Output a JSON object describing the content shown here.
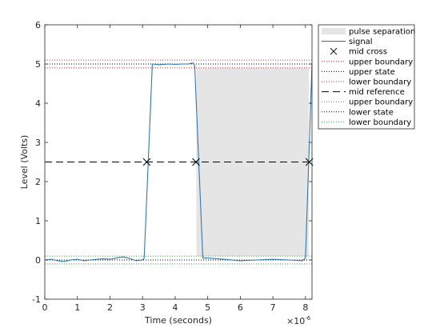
{
  "chart_data": {
    "type": "line",
    "xlabel": "Time (seconds)",
    "ylabel": "Level (Volts)",
    "x_exponent_label": "×10",
    "x_exponent_power": "-6",
    "xlim": [
      0,
      8.2
    ],
    "ylim": [
      -1,
      6
    ],
    "xticks": [
      "0",
      "1",
      "2",
      "3",
      "4",
      "5",
      "6",
      "7",
      "8"
    ],
    "yticks": [
      "-1",
      "0",
      "1",
      "2",
      "3",
      "4",
      "5",
      "6"
    ],
    "grid": false,
    "legend_position": "top-right-outside",
    "colors": {
      "signal": "#2f78b4",
      "upper": "#d62728",
      "lower": "#2ca02c",
      "state": "#000000",
      "fill": "#e5e5e5"
    },
    "pulse_separation": {
      "x_start": 4.65,
      "x_end": 8.1
    },
    "mid_cross": {
      "x": [
        3.13,
        4.64,
        8.12
      ],
      "y": 2.5
    },
    "reference_lines": {
      "mid_reference": 2.5,
      "upper_boundary_high": 5.1,
      "upper_state": 5.0,
      "lower_boundary_high": 4.9,
      "upper_boundary_low": 0.1,
      "lower_state": 0.0,
      "lower_boundary_low": -0.1
    },
    "series": [
      {
        "name": "signal",
        "x": [
          0,
          0.2,
          0.4,
          0.6,
          0.8,
          1.0,
          1.2,
          1.4,
          1.6,
          1.8,
          2.0,
          2.2,
          2.4,
          2.6,
          2.8,
          3.0,
          3.05,
          3.3,
          3.5,
          3.8,
          4.0,
          4.2,
          4.4,
          4.55,
          4.6,
          4.85,
          5.0,
          5.5,
          6.0,
          6.5,
          7.0,
          7.5,
          7.9,
          8.0,
          8.2
        ],
        "y": [
          0.0,
          0.02,
          -0.02,
          -0.04,
          0.0,
          0.02,
          -0.02,
          0.0,
          0.02,
          0.03,
          0.02,
          0.05,
          0.08,
          0.04,
          -0.02,
          0.0,
          0.05,
          5.0,
          4.98,
          5.0,
          4.99,
          5.0,
          5.0,
          5.03,
          4.95,
          0.05,
          0.05,
          0.02,
          -0.02,
          0.0,
          0.02,
          0.0,
          -0.02,
          0.05,
          5.0
        ]
      }
    ],
    "legend": [
      {
        "label": "pulse separation",
        "marker": "patch"
      },
      {
        "label": "signal",
        "marker": "line-signal"
      },
      {
        "label": "mid cross",
        "marker": "x"
      },
      {
        "label": "upper boundary",
        "marker": "dot-upper"
      },
      {
        "label": "upper state",
        "marker": "dot-state"
      },
      {
        "label": "lower boundary",
        "marker": "dot-upper"
      },
      {
        "label": "mid reference",
        "marker": "dash"
      },
      {
        "label": "upper boundary",
        "marker": "dot-lower"
      },
      {
        "label": "lower state",
        "marker": "dot-state"
      },
      {
        "label": "lower boundary",
        "marker": "dot-lower"
      }
    ]
  }
}
